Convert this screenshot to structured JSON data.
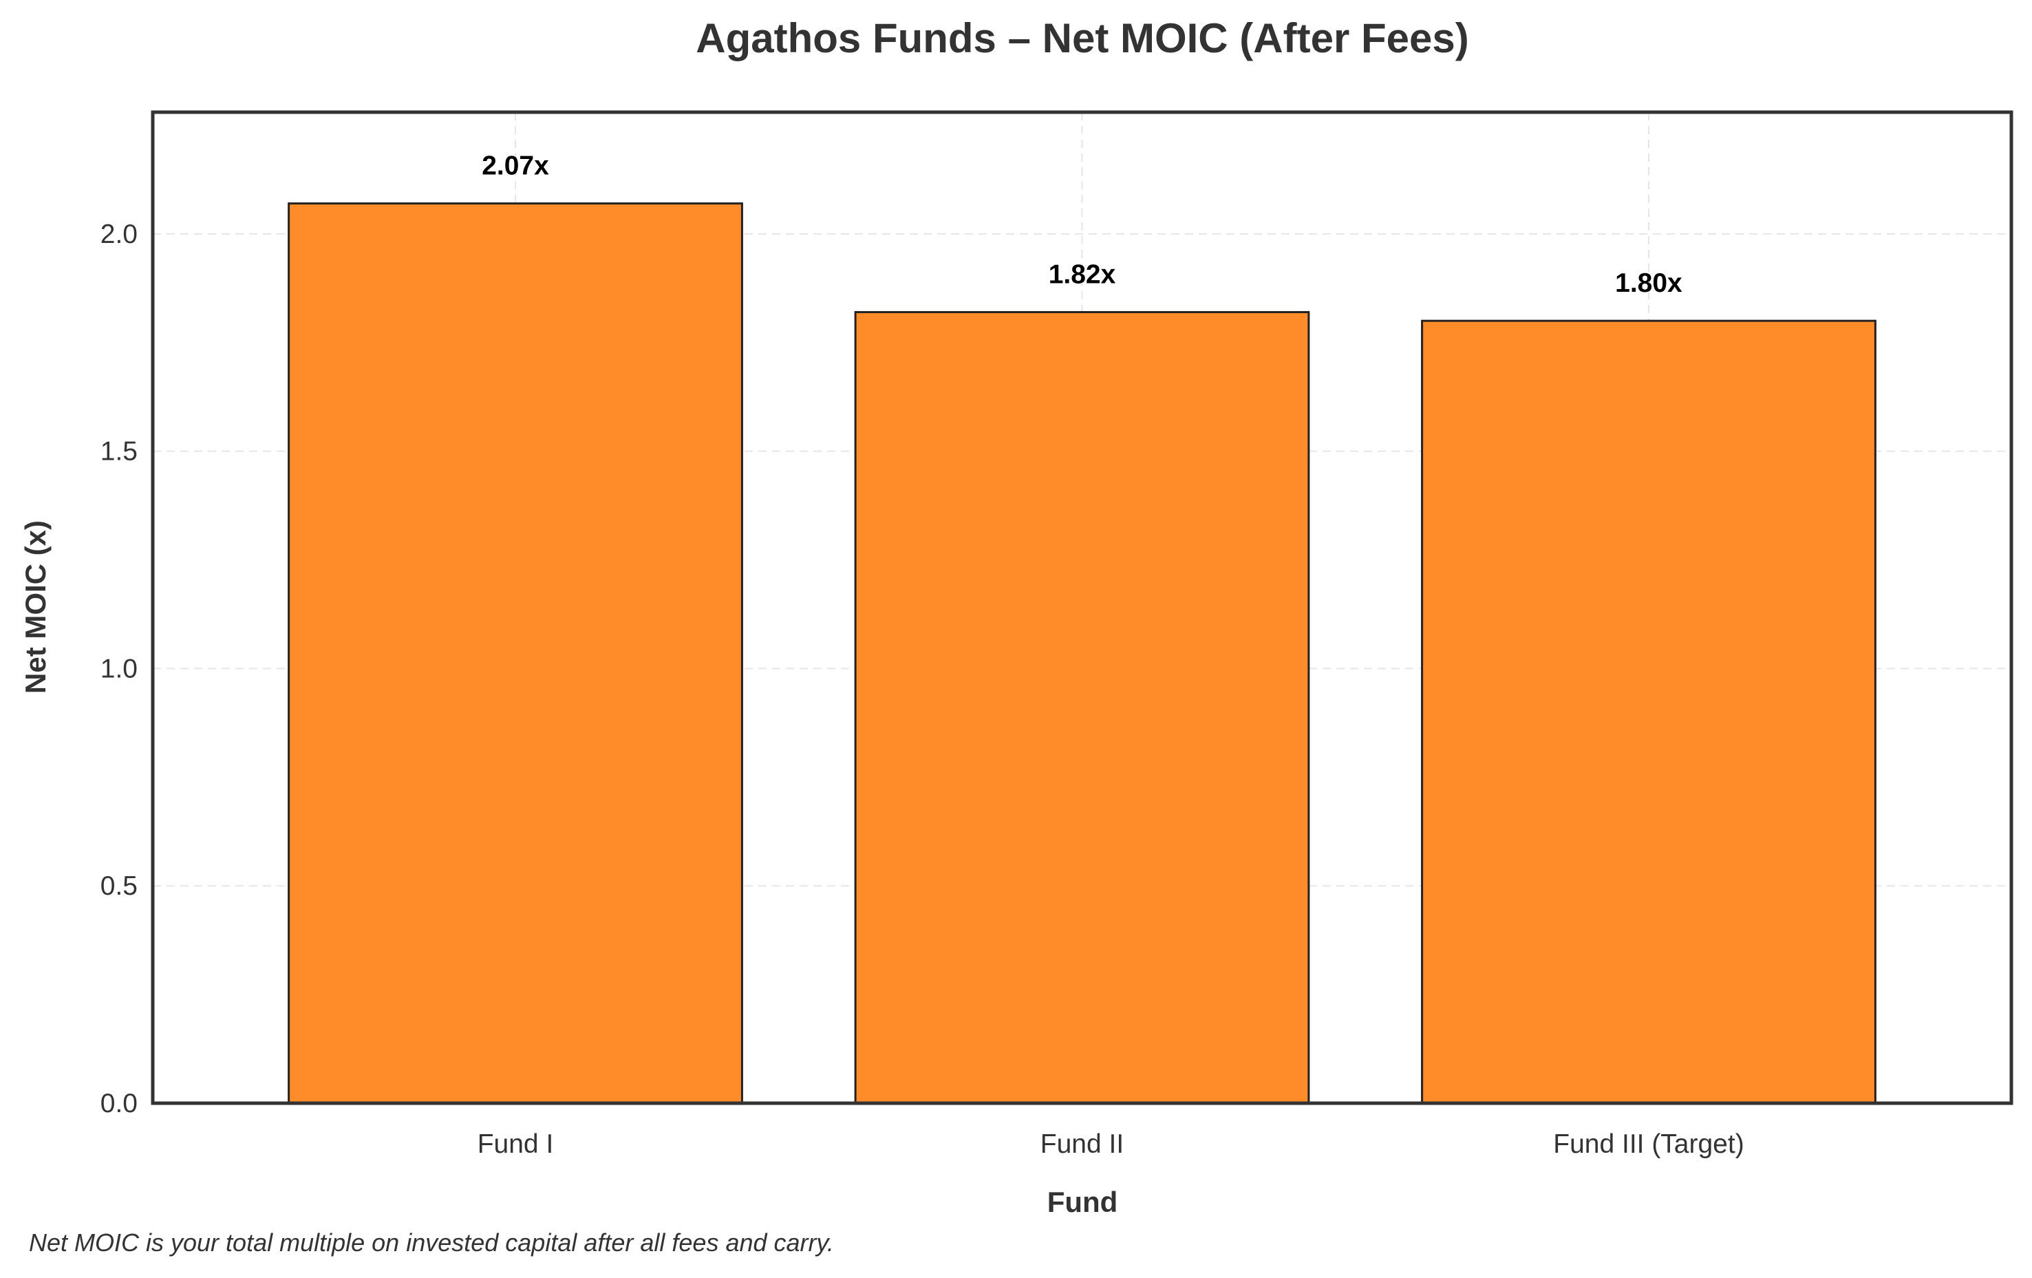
{
  "chart_data": {
    "type": "bar",
    "title": "Agathos Funds – Net MOIC (After Fees)",
    "xlabel": "Fund",
    "ylabel": "Net MOIC (x)",
    "categories": [
      "Fund I",
      "Fund II",
      "Fund III (Target)"
    ],
    "values": [
      2.07,
      1.82,
      1.8
    ],
    "data_labels": [
      "2.07x",
      "1.82x",
      "1.80x"
    ],
    "ylim": [
      0,
      2.28
    ],
    "yticks": [
      0.0,
      0.5,
      1.0,
      1.5,
      2.0
    ],
    "ytick_labels": [
      "0.0",
      "0.5",
      "1.0",
      "1.5",
      "2.0"
    ],
    "grid": true,
    "bar_color": "#ff8c29",
    "bar_edge_color": "#222222",
    "footnote": "Net MOIC is your total multiple on invested capital after all fees and carry."
  }
}
